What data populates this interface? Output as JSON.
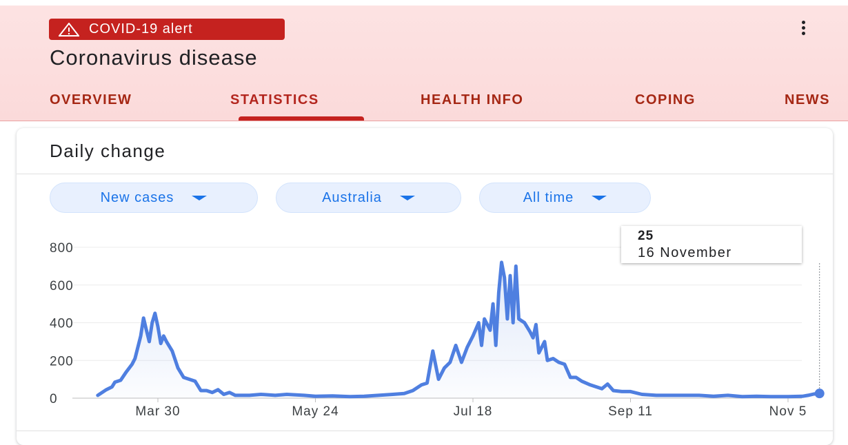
{
  "header": {
    "alert_label": "COVID-19 alert",
    "title": "Coronavirus disease",
    "menu_icon": "more-vert-icon",
    "tabs": [
      {
        "label": "OVERVIEW",
        "active": false
      },
      {
        "label": "STATISTICS",
        "active": true
      },
      {
        "label": "HEALTH INFO",
        "active": false
      },
      {
        "label": "COPING",
        "active": false
      },
      {
        "label": "NEWS",
        "active": false
      }
    ],
    "accent_color": "#c5221f"
  },
  "card": {
    "title": "Daily change",
    "filters": [
      {
        "label": "New cases"
      },
      {
        "label": "Australia"
      },
      {
        "label": "All time"
      }
    ]
  },
  "tooltip": {
    "value": "25",
    "date": "16 November"
  },
  "chart_data": {
    "type": "area",
    "title": "",
    "xlabel": "",
    "ylabel": "",
    "ylim": [
      0,
      800
    ],
    "y_ticks": [
      "0",
      "200",
      "400",
      "600",
      "800"
    ],
    "x_ticks": [
      {
        "label": "Mar 30",
        "date": "2020-03-30"
      },
      {
        "label": "May 24",
        "date": "2020-05-24"
      },
      {
        "label": "Jul 18",
        "date": "2020-07-18"
      },
      {
        "label": "Sep 11",
        "date": "2020-09-11"
      },
      {
        "label": "Nov 5",
        "date": "2020-11-05"
      }
    ],
    "grid": true,
    "series": [
      {
        "color": "#4f7fe0",
        "points": [
          [
            "2020-03-09",
            15
          ],
          [
            "2020-03-12",
            45
          ],
          [
            "2020-03-14",
            60
          ],
          [
            "2020-03-15",
            85
          ],
          [
            "2020-03-17",
            95
          ],
          [
            "2020-03-19",
            140
          ],
          [
            "2020-03-21",
            180
          ],
          [
            "2020-03-22",
            210
          ],
          [
            "2020-03-24",
            330
          ],
          [
            "2020-03-25",
            425
          ],
          [
            "2020-03-26",
            360
          ],
          [
            "2020-03-27",
            300
          ],
          [
            "2020-03-28",
            400
          ],
          [
            "2020-03-29",
            450
          ],
          [
            "2020-03-30",
            380
          ],
          [
            "2020-03-31",
            290
          ],
          [
            "2020-04-01",
            330
          ],
          [
            "2020-04-02",
            300
          ],
          [
            "2020-04-04",
            250
          ],
          [
            "2020-04-06",
            160
          ],
          [
            "2020-04-08",
            110
          ],
          [
            "2020-04-10",
            100
          ],
          [
            "2020-04-12",
            90
          ],
          [
            "2020-04-14",
            40
          ],
          [
            "2020-04-16",
            40
          ],
          [
            "2020-04-18",
            30
          ],
          [
            "2020-04-20",
            45
          ],
          [
            "2020-04-22",
            20
          ],
          [
            "2020-04-24",
            30
          ],
          [
            "2020-04-26",
            15
          ],
          [
            "2020-05-01",
            15
          ],
          [
            "2020-05-05",
            20
          ],
          [
            "2020-05-10",
            15
          ],
          [
            "2020-05-14",
            20
          ],
          [
            "2020-05-20",
            15
          ],
          [
            "2020-05-24",
            10
          ],
          [
            "2020-05-30",
            12
          ],
          [
            "2020-06-05",
            8
          ],
          [
            "2020-06-10",
            10
          ],
          [
            "2020-06-15",
            15
          ],
          [
            "2020-06-20",
            20
          ],
          [
            "2020-06-24",
            25
          ],
          [
            "2020-06-27",
            40
          ],
          [
            "2020-06-30",
            70
          ],
          [
            "2020-07-02",
            80
          ],
          [
            "2020-07-04",
            250
          ],
          [
            "2020-07-06",
            100
          ],
          [
            "2020-07-08",
            160
          ],
          [
            "2020-07-10",
            190
          ],
          [
            "2020-07-12",
            280
          ],
          [
            "2020-07-14",
            190
          ],
          [
            "2020-07-16",
            270
          ],
          [
            "2020-07-18",
            330
          ],
          [
            "2020-07-20",
            400
          ],
          [
            "2020-07-21",
            280
          ],
          [
            "2020-07-22",
            420
          ],
          [
            "2020-07-24",
            360
          ],
          [
            "2020-07-25",
            500
          ],
          [
            "2020-07-26",
            280
          ],
          [
            "2020-07-27",
            560
          ],
          [
            "2020-07-28",
            720
          ],
          [
            "2020-07-29",
            640
          ],
          [
            "2020-07-30",
            420
          ],
          [
            "2020-07-31",
            650
          ],
          [
            "2020-08-01",
            400
          ],
          [
            "2020-08-02",
            700
          ],
          [
            "2020-08-03",
            420
          ],
          [
            "2020-08-05",
            400
          ],
          [
            "2020-08-07",
            350
          ],
          [
            "2020-08-08",
            320
          ],
          [
            "2020-08-09",
            390
          ],
          [
            "2020-08-10",
            240
          ],
          [
            "2020-08-12",
            300
          ],
          [
            "2020-08-13",
            200
          ],
          [
            "2020-08-15",
            210
          ],
          [
            "2020-08-17",
            190
          ],
          [
            "2020-08-19",
            180
          ],
          [
            "2020-08-21",
            110
          ],
          [
            "2020-08-23",
            110
          ],
          [
            "2020-08-25",
            90
          ],
          [
            "2020-08-28",
            70
          ],
          [
            "2020-09-01",
            50
          ],
          [
            "2020-09-03",
            75
          ],
          [
            "2020-09-05",
            40
          ],
          [
            "2020-09-08",
            35
          ],
          [
            "2020-09-11",
            35
          ],
          [
            "2020-09-15",
            20
          ],
          [
            "2020-09-20",
            15
          ],
          [
            "2020-09-25",
            15
          ],
          [
            "2020-09-30",
            15
          ],
          [
            "2020-10-05",
            15
          ],
          [
            "2020-10-10",
            10
          ],
          [
            "2020-10-15",
            15
          ],
          [
            "2020-10-20",
            8
          ],
          [
            "2020-10-25",
            10
          ],
          [
            "2020-10-30",
            8
          ],
          [
            "2020-11-05",
            8
          ],
          [
            "2020-11-10",
            10
          ],
          [
            "2020-11-12",
            15
          ],
          [
            "2020-11-14",
            22
          ],
          [
            "2020-11-16",
            25
          ]
        ]
      }
    ],
    "highlight": {
      "date": "2020-11-16",
      "value": 25
    }
  }
}
